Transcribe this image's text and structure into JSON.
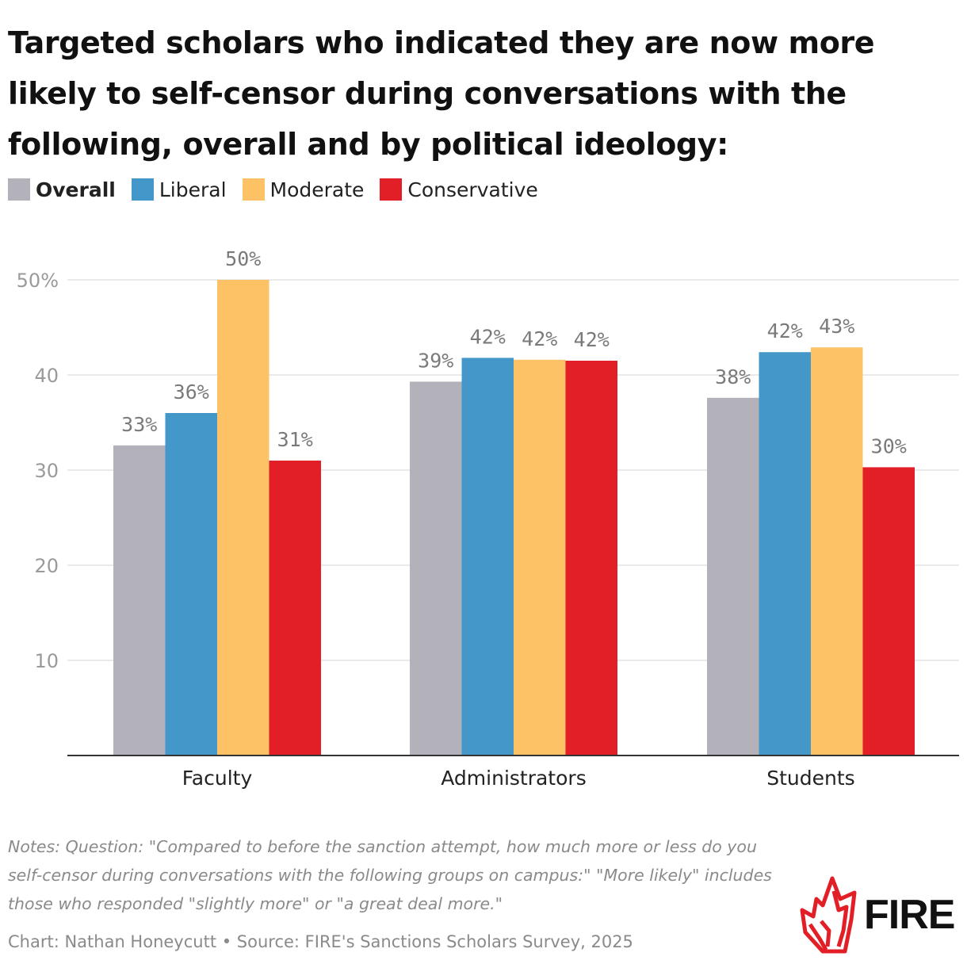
{
  "title": "Targeted scholars who indicated they are now more likely to self-censor during conversations with the following, overall and by political ideology:",
  "legend": [
    {
      "label": "Overall",
      "color": "#b3b2bb",
      "bold": true
    },
    {
      "label": "Liberal",
      "color": "#4497c9",
      "bold": false
    },
    {
      "label": "Moderate",
      "color": "#fdc166",
      "bold": false
    },
    {
      "label": "Conservative",
      "color": "#e21f27",
      "bold": false
    }
  ],
  "chart_data": {
    "type": "bar",
    "categories": [
      "Faculty",
      "Administrators",
      "Students"
    ],
    "series": [
      {
        "name": "Overall",
        "color": "#b3b2bb",
        "values": [
          32.6,
          39.3,
          37.6
        ],
        "labels": [
          "33%",
          "39%",
          "38%"
        ]
      },
      {
        "name": "Liberal",
        "color": "#4497c9",
        "values": [
          36.0,
          41.8,
          42.4
        ],
        "labels": [
          "36%",
          "42%",
          "42%"
        ]
      },
      {
        "name": "Moderate",
        "color": "#fdc166",
        "values": [
          50.0,
          41.6,
          42.9
        ],
        "labels": [
          "50%",
          "42%",
          "43%"
        ]
      },
      {
        "name": "Conservative",
        "color": "#e21f27",
        "values": [
          31.0,
          41.5,
          30.3
        ],
        "labels": [
          "31%",
          "42%",
          "30%"
        ]
      }
    ],
    "yticks": [
      {
        "value": 10,
        "label": "10"
      },
      {
        "value": 20,
        "label": "20"
      },
      {
        "value": 30,
        "label": "30"
      },
      {
        "value": 40,
        "label": "40"
      },
      {
        "value": 50,
        "label": "50%"
      }
    ],
    "ylim": [
      0,
      50
    ],
    "grid": true,
    "xlabel": "",
    "ylabel": ""
  },
  "notes": "Notes: Question: \"Compared to before the sanction attempt, how much more or less do you self-censor during conversations with the following groups on campus:\" \"More likely\" includes those who responded \"slightly more\" or \"a great deal more.\"",
  "credit": "Chart: Nathan Honeycutt • Source: FIRE's Sanctions Scholars Survey, 2025",
  "logo": {
    "text": "FIRE",
    "color": "#e21f27"
  }
}
